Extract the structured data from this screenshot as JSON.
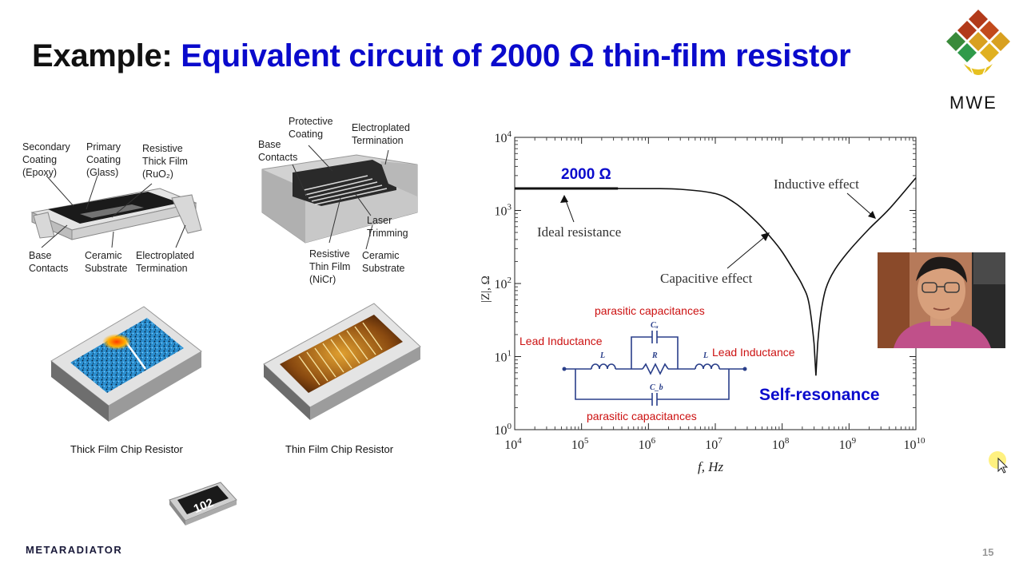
{
  "title": {
    "prefix": "Example:",
    "main": "Equivalent circuit of 2000 Ω thin-film resistor"
  },
  "logo": {
    "text": "MWE"
  },
  "brand": "METARADIATOR",
  "page_number": "15",
  "thick_film_labels": {
    "secondary_coating": "Secondary\nCoating\n(Epoxy)",
    "primary_coating": "Primary\nCoating\n(Glass)",
    "resistive_thick_film": "Resistive\nThick Film\n(RuO₂)",
    "base_contacts": "Base\nContacts",
    "ceramic_substrate": "Ceramic\nSubstrate",
    "electroplated_termination": "Electroplated\nTermination"
  },
  "thin_film_labels": {
    "protective_coating": "Protective\nCoating",
    "electroplated_termination": "Electroplated\nTermination",
    "base_contacts": "Base\nContacts",
    "laser_trimming": "Laser\nTrimming",
    "resistive_thin_film": "Resistive\nThin Film\n(NiCr)",
    "ceramic_substrate": "Ceramic\nSubstrate"
  },
  "captions": {
    "thick_chip": "Thick Film Chip Resistor",
    "thin_chip": "Thin Film Chip Resistor",
    "smd_marking": "102"
  },
  "chart_data": {
    "type": "line",
    "xlabel": "f, Hz",
    "ylabel": "|Z|, Ω",
    "x_scale": "log",
    "y_scale": "log",
    "xlim": [
      10000,
      10000000000
    ],
    "ylim": [
      1,
      10000
    ],
    "x_ticks": [
      "10^4",
      "10^5",
      "10^6",
      "10^7",
      "10^8",
      "10^9",
      "10^10"
    ],
    "y_ticks": [
      "10^0",
      "10^1",
      "10^2",
      "10^3",
      "10^4"
    ],
    "grid": false,
    "series": [
      {
        "x": [
          10000,
          100000,
          1000000,
          3000000,
          10000000,
          20000000,
          40000000,
          70000000,
          100000000,
          150000000,
          200000000,
          250000000,
          300000000,
          320000000,
          340000000,
          380000000,
          450000000,
          600000000,
          1000000000,
          2000000000,
          4000000000,
          10000000000
        ],
        "y": [
          2000,
          2000,
          1990,
          1950,
          1700,
          1250,
          720,
          410,
          270,
          150,
          95,
          55,
          15,
          5.5,
          15,
          40,
          85,
          150,
          280,
          560,
          1050,
          2800
        ]
      }
    ],
    "ideal_segment": {
      "x": [
        10000,
        350000
      ],
      "y": [
        2000,
        2000
      ]
    },
    "annotations": {
      "value_2000": "2000 Ω",
      "ideal_resistance": "Ideal resistance",
      "capacitive_effect": "Capacitive effect",
      "inductive_effect": "Inductive effect",
      "self_resonance": "Self-resonance"
    }
  },
  "circuit": {
    "parasitic_cap_top": "parasitic capacitances",
    "parasitic_cap_bottom": "parasitic capacitances",
    "lead_inductance_left": "Lead Inductance",
    "lead_inductance_right": "Lead Inductance",
    "symbol_L": "L",
    "symbol_R": "R",
    "symbol_Ca": "Cₐ",
    "symbol_Cb": "C_b"
  },
  "colors": {
    "title_blue": "#0a0acc",
    "annotation_red": "#cc1111",
    "circuit_blue": "#2a3f8a",
    "thin_film_gold": "#c98a1a",
    "thick_film_blue": "#2b8fd0"
  }
}
